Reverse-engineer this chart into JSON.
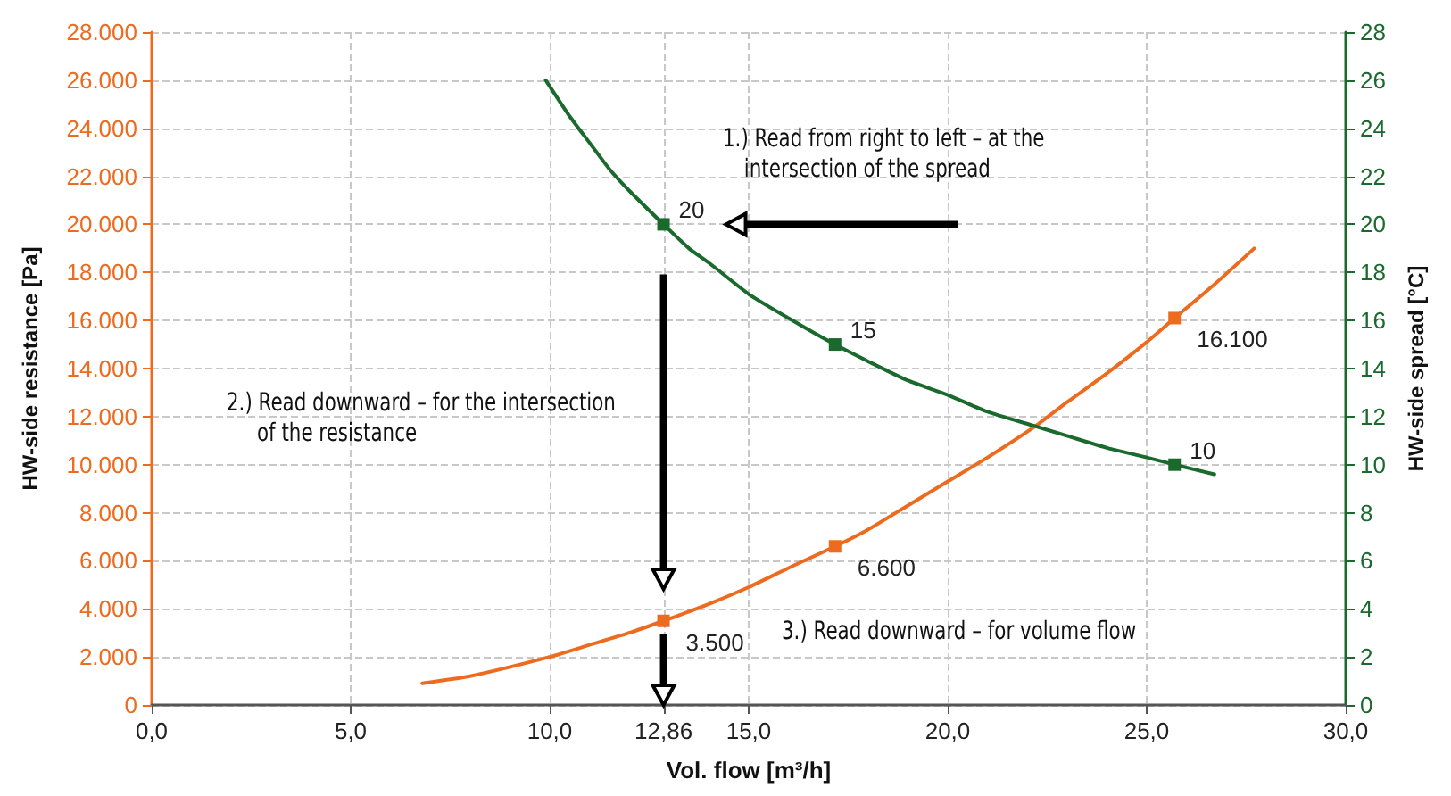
{
  "chart_data": {
    "type": "line",
    "xlabel": "Vol. flow [m³/h]",
    "ylabel": "HW-side resistance [Pa]",
    "y2label": "HW-side spread [°C]",
    "xlim": [
      0,
      30
    ],
    "xticks": [
      {
        "value": 0,
        "label": "0,0"
      },
      {
        "value": 5,
        "label": "5,0"
      },
      {
        "value": 10,
        "label": "10,0"
      },
      {
        "value": 12.86,
        "label": "12,86"
      },
      {
        "value": 15,
        "label": "15,0"
      },
      {
        "value": 20,
        "label": "20,0"
      },
      {
        "value": 25,
        "label": "25,0"
      },
      {
        "value": 30,
        "label": "30,0"
      }
    ],
    "ylim": [
      0,
      28000
    ],
    "yticks": [
      {
        "value": 0,
        "label": "0"
      },
      {
        "value": 2000,
        "label": "2.000"
      },
      {
        "value": 4000,
        "label": "4.000"
      },
      {
        "value": 6000,
        "label": "6.000"
      },
      {
        "value": 8000,
        "label": "8.000"
      },
      {
        "value": 10000,
        "label": "10.000"
      },
      {
        "value": 12000,
        "label": "12.000"
      },
      {
        "value": 14000,
        "label": "14.000"
      },
      {
        "value": 16000,
        "label": "16.000"
      },
      {
        "value": 18000,
        "label": "18.000"
      },
      {
        "value": 20000,
        "label": "20.000"
      },
      {
        "value": 22000,
        "label": "22.000"
      },
      {
        "value": 24000,
        "label": "24.000"
      },
      {
        "value": 26000,
        "label": "26.000"
      },
      {
        "value": 28000,
        "label": "28.000"
      }
    ],
    "y2lim": [
      0,
      28
    ],
    "y2ticks": [
      0,
      2,
      4,
      6,
      8,
      10,
      12,
      14,
      16,
      18,
      20,
      22,
      24,
      26,
      28
    ],
    "grid": true,
    "line_style": "solid",
    "annotations": [
      "1.) Read from right to left – at the intersection of the spread",
      "2.) Read downward – for the intersection of the resistance",
      "3.) Read downward – for volume flow"
    ],
    "series": [
      {
        "color": "#ed6b1f",
        "x": [
          6.8,
          8,
          10,
          11,
          12,
          12.86,
          14,
          15,
          16,
          17.17,
          18,
          19,
          20,
          21,
          22.2,
          23,
          24,
          25,
          25.7,
          26.7,
          27.7
        ],
        "values": [
          900,
          1200,
          2000,
          2500,
          3000,
          3500,
          4200,
          4900,
          5700,
          6600,
          7300,
          8300,
          9300,
          10300,
          11600,
          12600,
          13800,
          15100,
          16100,
          17500,
          19000
        ],
        "value_labels": [
          null,
          null,
          null,
          null,
          null,
          "3.500",
          null,
          null,
          null,
          "6.600",
          null,
          null,
          null,
          null,
          null,
          null,
          null,
          null,
          "16.100",
          null,
          null
        ]
      },
      {
        "color": "#1a6a2e",
        "axis": "y2",
        "x": [
          9.9,
          10.5,
          11,
          11.5,
          12,
          12.86,
          13.5,
          14,
          15,
          16,
          17.17,
          18,
          19,
          20,
          21,
          22.2,
          23,
          24,
          25,
          25.7,
          26.7
        ],
        "values": [
          26,
          24.5,
          23.4,
          22.3,
          21.4,
          20,
          19,
          18.4,
          17.1,
          16.1,
          15,
          14.3,
          13.5,
          12.9,
          12.2,
          11.6,
          11.2,
          10.7,
          10.3,
          10,
          9.6
        ],
        "value_labels": [
          null,
          null,
          null,
          null,
          null,
          "20",
          null,
          null,
          null,
          null,
          "15",
          null,
          null,
          null,
          null,
          null,
          null,
          null,
          null,
          "10",
          null
        ]
      }
    ]
  }
}
